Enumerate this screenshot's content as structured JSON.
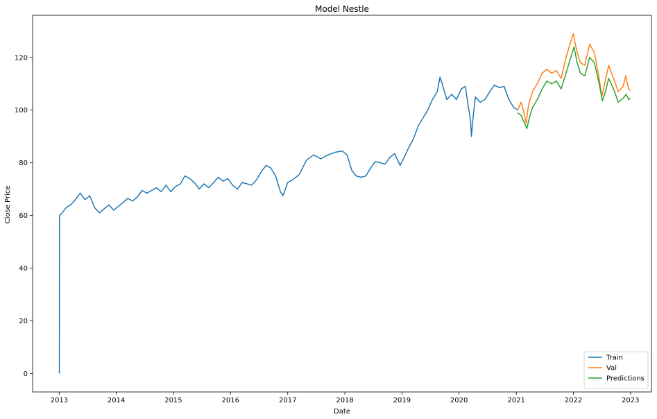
{
  "chart_data": {
    "type": "line",
    "title": "Model Nestle",
    "xlabel": "Date",
    "ylabel": "Close Price",
    "xlim": [
      "2012-07-15",
      "2023-05-15"
    ],
    "ylim": [
      -7,
      136
    ],
    "x_ticks": [
      "2013",
      "2014",
      "2015",
      "2016",
      "2017",
      "2018",
      "2019",
      "2020",
      "2021",
      "2022",
      "2023"
    ],
    "y_ticks": [
      0,
      20,
      40,
      60,
      80,
      100,
      120
    ],
    "grid": false,
    "legend_position": "bottom-right",
    "series": [
      {
        "name": "Train",
        "color": "#1f77b4",
        "points": [
          [
            "2013-01-02",
            0
          ],
          [
            "2013-01-03",
            60
          ],
          [
            "2013-01-20",
            61
          ],
          [
            "2013-02-15",
            63
          ],
          [
            "2013-03-15",
            64
          ],
          [
            "2013-04-15",
            66
          ],
          [
            "2013-05-15",
            68.5
          ],
          [
            "2013-06-15",
            66
          ],
          [
            "2013-07-15",
            67.5
          ],
          [
            "2013-08-15",
            63
          ],
          [
            "2013-09-15",
            61
          ],
          [
            "2013-10-15",
            62.5
          ],
          [
            "2013-11-15",
            64
          ],
          [
            "2013-12-15",
            62
          ],
          [
            "2014-01-15",
            63.5
          ],
          [
            "2014-02-15",
            65
          ],
          [
            "2014-03-15",
            66.5
          ],
          [
            "2014-04-15",
            65.5
          ],
          [
            "2014-05-15",
            67
          ],
          [
            "2014-06-15",
            69.5
          ],
          [
            "2014-07-15",
            68.5
          ],
          [
            "2014-08-15",
            69.5
          ],
          [
            "2014-09-15",
            70.5
          ],
          [
            "2014-10-15",
            69
          ],
          [
            "2014-11-15",
            71.5
          ],
          [
            "2014-12-15",
            69
          ],
          [
            "2015-01-15",
            71
          ],
          [
            "2015-02-15",
            72
          ],
          [
            "2015-03-15",
            75
          ],
          [
            "2015-04-15",
            74
          ],
          [
            "2015-05-15",
            72.5
          ],
          [
            "2015-06-15",
            70
          ],
          [
            "2015-07-15",
            72
          ],
          [
            "2015-08-15",
            70.5
          ],
          [
            "2015-09-15",
            72.5
          ],
          [
            "2015-10-15",
            74.5
          ],
          [
            "2015-11-15",
            73
          ],
          [
            "2015-12-15",
            74
          ],
          [
            "2016-01-15",
            71.5
          ],
          [
            "2016-02-15",
            70
          ],
          [
            "2016-03-15",
            72.5
          ],
          [
            "2016-04-15",
            72
          ],
          [
            "2016-05-15",
            71.5
          ],
          [
            "2016-06-15",
            73.5
          ],
          [
            "2016-07-15",
            76.5
          ],
          [
            "2016-08-15",
            79
          ],
          [
            "2016-09-15",
            78
          ],
          [
            "2016-10-15",
            75
          ],
          [
            "2016-11-15",
            69
          ],
          [
            "2016-12-01",
            67.5
          ],
          [
            "2017-01-01",
            72.5
          ],
          [
            "2017-02-01",
            73.5
          ],
          [
            "2017-03-15",
            75.5
          ],
          [
            "2017-05-01",
            81
          ],
          [
            "2017-06-15",
            83
          ],
          [
            "2017-08-01",
            81.5
          ],
          [
            "2017-09-15",
            83
          ],
          [
            "2017-11-01",
            84
          ],
          [
            "2017-12-15",
            84.5
          ],
          [
            "2018-01-15",
            83
          ],
          [
            "2018-02-15",
            77
          ],
          [
            "2018-03-15",
            75
          ],
          [
            "2018-04-15",
            74.5
          ],
          [
            "2018-05-15",
            75
          ],
          [
            "2018-06-15",
            78
          ],
          [
            "2018-07-15",
            80.5
          ],
          [
            "2018-08-15",
            80
          ],
          [
            "2018-09-15",
            79.5
          ],
          [
            "2018-10-15",
            82
          ],
          [
            "2018-11-15",
            83.5
          ],
          [
            "2018-12-20",
            79
          ],
          [
            "2019-01-15",
            82
          ],
          [
            "2019-02-15",
            86
          ],
          [
            "2019-03-15",
            89
          ],
          [
            "2019-04-15",
            94
          ],
          [
            "2019-05-15",
            97
          ],
          [
            "2019-06-15",
            100
          ],
          [
            "2019-07-15",
            104
          ],
          [
            "2019-08-15",
            107
          ],
          [
            "2019-09-01",
            112.5
          ],
          [
            "2019-09-15",
            110
          ],
          [
            "2019-10-15",
            104
          ],
          [
            "2019-11-15",
            106
          ],
          [
            "2019-12-15",
            104
          ],
          [
            "2020-01-15",
            108
          ],
          [
            "2020-02-10",
            109
          ],
          [
            "2020-03-01",
            101
          ],
          [
            "2020-03-15",
            96
          ],
          [
            "2020-03-20",
            90
          ],
          [
            "2020-04-01",
            98
          ],
          [
            "2020-04-15",
            105
          ],
          [
            "2020-05-15",
            103
          ],
          [
            "2020-06-15",
            104
          ],
          [
            "2020-07-15",
            107
          ],
          [
            "2020-08-15",
            109.5
          ],
          [
            "2020-09-15",
            108.5
          ],
          [
            "2020-10-15",
            109
          ],
          [
            "2020-11-15",
            104
          ],
          [
            "2020-12-15",
            101
          ],
          [
            "2021-01-10",
            100
          ]
        ]
      },
      {
        "name": "Val",
        "color": "#ff7f0e",
        "points": [
          [
            "2021-01-10",
            100
          ],
          [
            "2021-02-01",
            103
          ],
          [
            "2021-02-15",
            100
          ],
          [
            "2021-03-05",
            95
          ],
          [
            "2021-03-20",
            102
          ],
          [
            "2021-04-15",
            107
          ],
          [
            "2021-05-15",
            110
          ],
          [
            "2021-06-15",
            114
          ],
          [
            "2021-07-15",
            115.5
          ],
          [
            "2021-08-15",
            114
          ],
          [
            "2021-09-15",
            115
          ],
          [
            "2021-10-15",
            112
          ],
          [
            "2021-11-15",
            120
          ],
          [
            "2021-12-15",
            126
          ],
          [
            "2022-01-01",
            129
          ],
          [
            "2022-01-20",
            123
          ],
          [
            "2022-02-15",
            118
          ],
          [
            "2022-03-15",
            117
          ],
          [
            "2022-04-15",
            125
          ],
          [
            "2022-05-15",
            122
          ],
          [
            "2022-06-15",
            112
          ],
          [
            "2022-07-01",
            105
          ],
          [
            "2022-07-20",
            110
          ],
          [
            "2022-08-15",
            117
          ],
          [
            "2022-09-15",
            112
          ],
          [
            "2022-10-15",
            107
          ],
          [
            "2022-11-15",
            109
          ],
          [
            "2022-12-01",
            113
          ],
          [
            "2022-12-20",
            108
          ],
          [
            "2023-01-01",
            107.5
          ]
        ]
      },
      {
        "name": "Predictions",
        "color": "#2ca02c",
        "points": [
          [
            "2021-01-10",
            99
          ],
          [
            "2021-02-01",
            98
          ],
          [
            "2021-02-15",
            96
          ],
          [
            "2021-03-10",
            93
          ],
          [
            "2021-03-25",
            97
          ],
          [
            "2021-04-15",
            101
          ],
          [
            "2021-05-15",
            104
          ],
          [
            "2021-06-15",
            108
          ],
          [
            "2021-07-15",
            111
          ],
          [
            "2021-08-15",
            110
          ],
          [
            "2021-09-15",
            111
          ],
          [
            "2021-10-15",
            108
          ],
          [
            "2021-11-15",
            114
          ],
          [
            "2021-12-15",
            120
          ],
          [
            "2022-01-05",
            124
          ],
          [
            "2022-01-25",
            118
          ],
          [
            "2022-02-15",
            114
          ],
          [
            "2022-03-15",
            113
          ],
          [
            "2022-04-15",
            120
          ],
          [
            "2022-05-15",
            118
          ],
          [
            "2022-06-15",
            110
          ],
          [
            "2022-07-05",
            103.5
          ],
          [
            "2022-07-25",
            107
          ],
          [
            "2022-08-15",
            112
          ],
          [
            "2022-09-15",
            108
          ],
          [
            "2022-10-15",
            103
          ],
          [
            "2022-11-15",
            104.5
          ],
          [
            "2022-12-05",
            106
          ],
          [
            "2022-12-20",
            104
          ],
          [
            "2023-01-01",
            104.5
          ]
        ]
      }
    ]
  }
}
